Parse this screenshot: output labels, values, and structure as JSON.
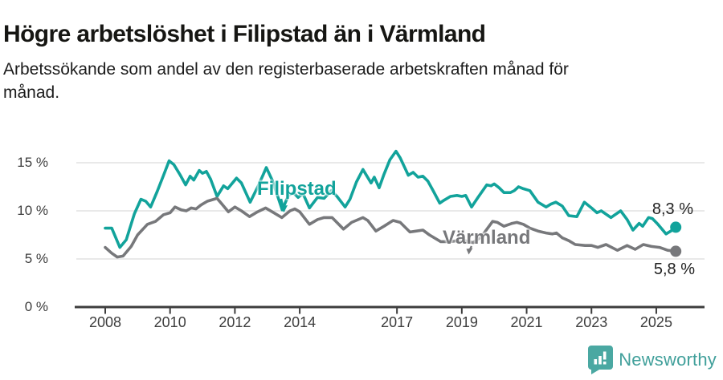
{
  "header": {
    "title": "Högre arbetslöshet i Filipstad än i Värmland",
    "subtitle_lines": [
      "Arbetssökande som andel av den registerbaserade arbetskraften månad för",
      "månad."
    ]
  },
  "chart_data": {
    "type": "line",
    "title": "Högre arbetslöshet i Filipstad än i Värmland",
    "subtitle": "Arbetssökande som andel av den registerbaserade arbetskraften månad för månad.",
    "unit": "%",
    "grid": "horizontal",
    "legend_position": "inline-annotations",
    "x_axis": {
      "ticks": [
        2008,
        2010,
        2012,
        2014,
        2017,
        2019,
        2021,
        2023,
        2025
      ],
      "range": [
        2007.1,
        2026.5
      ]
    },
    "y_axis": {
      "ticks": [
        0,
        5,
        10,
        15
      ],
      "tick_suffix": " %",
      "range": [
        0,
        16.9
      ]
    },
    "series": [
      {
        "name": "Filipstad",
        "color": "#12a39b",
        "end_label": "8,3 %",
        "end_value": 8.3,
        "points": [
          [
            2008.0,
            8.2
          ],
          [
            2008.2,
            8.2
          ],
          [
            2008.45,
            6.2
          ],
          [
            2008.65,
            7.0
          ],
          [
            2008.9,
            9.7
          ],
          [
            2009.1,
            11.2
          ],
          [
            2009.25,
            11.0
          ],
          [
            2009.4,
            10.4
          ],
          [
            2009.6,
            12.0
          ],
          [
            2009.8,
            13.7
          ],
          [
            2009.97,
            15.2
          ],
          [
            2010.12,
            14.8
          ],
          [
            2010.3,
            13.8
          ],
          [
            2010.48,
            12.7
          ],
          [
            2010.62,
            13.6
          ],
          [
            2010.73,
            13.2
          ],
          [
            2010.9,
            14.2
          ],
          [
            2011.0,
            13.9
          ],
          [
            2011.12,
            14.1
          ],
          [
            2011.25,
            13.3
          ],
          [
            2011.45,
            11.5
          ],
          [
            2011.65,
            12.6
          ],
          [
            2011.78,
            12.3
          ],
          [
            2012.05,
            13.4
          ],
          [
            2012.2,
            12.9
          ],
          [
            2012.47,
            10.9
          ],
          [
            2012.72,
            12.6
          ],
          [
            2012.97,
            14.5
          ],
          [
            2013.15,
            13.2
          ],
          [
            2013.3,
            11.7
          ],
          [
            2013.46,
            10.1
          ],
          [
            2013.65,
            11.6
          ],
          [
            2013.8,
            11.9
          ],
          [
            2013.95,
            11.4
          ],
          [
            2014.1,
            11.8
          ],
          [
            2014.3,
            10.3
          ],
          [
            2014.55,
            11.4
          ],
          [
            2014.75,
            11.3
          ],
          [
            2014.98,
            12.1
          ],
          [
            2015.15,
            11.5
          ],
          [
            2015.4,
            10.4
          ],
          [
            2015.55,
            11.2
          ],
          [
            2015.75,
            13.0
          ],
          [
            2015.95,
            14.3
          ],
          [
            2016.2,
            12.9
          ],
          [
            2016.3,
            13.5
          ],
          [
            2016.45,
            12.4
          ],
          [
            2016.6,
            13.8
          ],
          [
            2016.78,
            15.3
          ],
          [
            2016.97,
            16.2
          ],
          [
            2017.1,
            15.5
          ],
          [
            2017.35,
            13.7
          ],
          [
            2017.5,
            14.0
          ],
          [
            2017.65,
            13.5
          ],
          [
            2017.8,
            13.6
          ],
          [
            2017.95,
            13.1
          ],
          [
            2018.1,
            12.2
          ],
          [
            2018.32,
            10.8
          ],
          [
            2018.45,
            11.1
          ],
          [
            2018.65,
            11.5
          ],
          [
            2018.85,
            11.6
          ],
          [
            2019.0,
            11.5
          ],
          [
            2019.12,
            11.6
          ],
          [
            2019.3,
            10.4
          ],
          [
            2019.5,
            11.4
          ],
          [
            2019.77,
            12.7
          ],
          [
            2019.9,
            12.6
          ],
          [
            2020.0,
            12.8
          ],
          [
            2020.15,
            12.4
          ],
          [
            2020.3,
            11.9
          ],
          [
            2020.5,
            11.9
          ],
          [
            2020.62,
            12.1
          ],
          [
            2020.75,
            12.5
          ],
          [
            2020.9,
            12.3
          ],
          [
            2021.1,
            12.1
          ],
          [
            2021.35,
            10.9
          ],
          [
            2021.6,
            10.4
          ],
          [
            2021.75,
            10.7
          ],
          [
            2021.9,
            10.9
          ],
          [
            2022.1,
            10.5
          ],
          [
            2022.3,
            9.5
          ],
          [
            2022.55,
            9.4
          ],
          [
            2022.78,
            10.9
          ],
          [
            2023.0,
            10.3
          ],
          [
            2023.17,
            9.8
          ],
          [
            2023.3,
            10.0
          ],
          [
            2023.6,
            9.3
          ],
          [
            2023.9,
            10.0
          ],
          [
            2024.1,
            9.1
          ],
          [
            2024.28,
            8.0
          ],
          [
            2024.47,
            8.7
          ],
          [
            2024.58,
            8.4
          ],
          [
            2024.76,
            9.3
          ],
          [
            2024.88,
            9.2
          ],
          [
            2025.05,
            8.6
          ],
          [
            2025.3,
            7.6
          ],
          [
            2025.45,
            7.9
          ],
          [
            2025.6,
            8.3
          ]
        ]
      },
      {
        "name": "Värmland",
        "color": "#77787b",
        "end_label": "5,8 %",
        "end_value": 5.8,
        "points": [
          [
            2008.0,
            6.2
          ],
          [
            2008.2,
            5.6
          ],
          [
            2008.37,
            5.2
          ],
          [
            2008.55,
            5.3
          ],
          [
            2008.8,
            6.3
          ],
          [
            2009.0,
            7.5
          ],
          [
            2009.3,
            8.6
          ],
          [
            2009.55,
            8.9
          ],
          [
            2009.8,
            9.6
          ],
          [
            2010.0,
            9.8
          ],
          [
            2010.15,
            10.4
          ],
          [
            2010.35,
            10.1
          ],
          [
            2010.5,
            10.0
          ],
          [
            2010.65,
            10.3
          ],
          [
            2010.8,
            10.2
          ],
          [
            2010.95,
            10.6
          ],
          [
            2011.15,
            11.0
          ],
          [
            2011.45,
            11.3
          ],
          [
            2011.6,
            10.7
          ],
          [
            2011.8,
            9.9
          ],
          [
            2012.0,
            10.4
          ],
          [
            2012.2,
            10.0
          ],
          [
            2012.45,
            9.4
          ],
          [
            2012.7,
            9.9
          ],
          [
            2012.95,
            10.3
          ],
          [
            2013.15,
            9.9
          ],
          [
            2013.45,
            9.3
          ],
          [
            2013.7,
            10.0
          ],
          [
            2013.85,
            10.2
          ],
          [
            2014.0,
            9.9
          ],
          [
            2014.3,
            8.6
          ],
          [
            2014.55,
            9.1
          ],
          [
            2014.75,
            9.3
          ],
          [
            2015.0,
            9.3
          ],
          [
            2015.35,
            8.1
          ],
          [
            2015.6,
            8.8
          ],
          [
            2015.95,
            9.3
          ],
          [
            2016.1,
            9.0
          ],
          [
            2016.35,
            7.9
          ],
          [
            2016.6,
            8.4
          ],
          [
            2016.88,
            9.0
          ],
          [
            2017.1,
            8.8
          ],
          [
            2017.4,
            7.8
          ],
          [
            2017.6,
            7.9
          ],
          [
            2017.8,
            8.0
          ],
          [
            2018.0,
            7.5
          ],
          [
            2018.35,
            6.8
          ],
          [
            2018.6,
            6.8
          ],
          [
            2018.9,
            6.9
          ],
          [
            2019.1,
            6.9
          ],
          [
            2019.35,
            6.7
          ],
          [
            2019.6,
            7.3
          ],
          [
            2019.95,
            8.9
          ],
          [
            2020.1,
            8.8
          ],
          [
            2020.3,
            8.4
          ],
          [
            2020.55,
            8.7
          ],
          [
            2020.7,
            8.8
          ],
          [
            2020.9,
            8.6
          ],
          [
            2021.1,
            8.2
          ],
          [
            2021.35,
            7.9
          ],
          [
            2021.6,
            7.7
          ],
          [
            2021.8,
            7.6
          ],
          [
            2021.92,
            7.7
          ],
          [
            2022.1,
            7.2
          ],
          [
            2022.3,
            6.9
          ],
          [
            2022.5,
            6.5
          ],
          [
            2022.8,
            6.4
          ],
          [
            2023.0,
            6.4
          ],
          [
            2023.2,
            6.2
          ],
          [
            2023.45,
            6.5
          ],
          [
            2023.8,
            5.9
          ],
          [
            2024.1,
            6.4
          ],
          [
            2024.35,
            6.0
          ],
          [
            2024.6,
            6.5
          ],
          [
            2024.85,
            6.3
          ],
          [
            2025.1,
            6.2
          ],
          [
            2025.35,
            5.9
          ],
          [
            2025.6,
            5.8
          ]
        ]
      }
    ],
    "annotations": [
      {
        "text": "Filipstad",
        "color": "#12a39b"
      },
      {
        "text": "Värmland",
        "color": "#77787b"
      }
    ]
  },
  "branding": {
    "logo_text": "Newsworthy",
    "color": "#41a09b",
    "icon": "bar-chart-speech-bubble"
  }
}
